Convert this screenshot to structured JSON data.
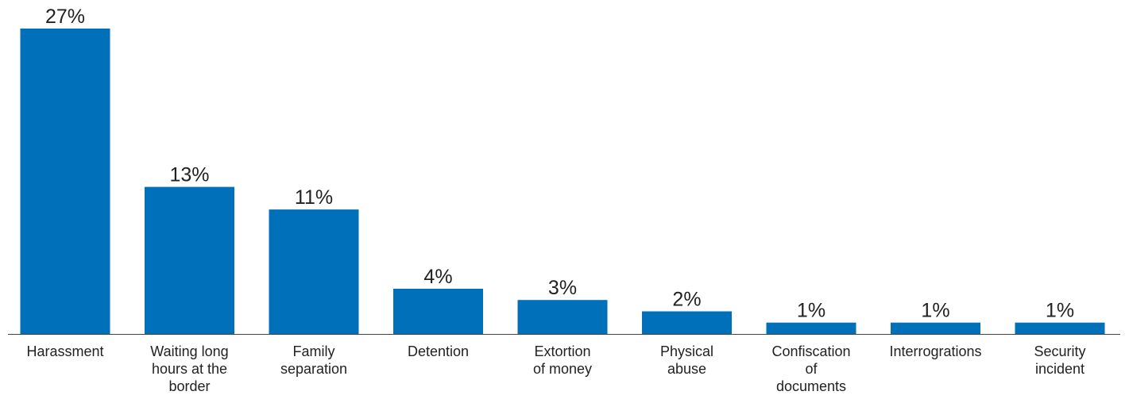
{
  "chart_data": {
    "type": "bar",
    "categories": [
      "Harassment",
      "Waiting long hours at the border",
      "Family separation",
      "Detention",
      "Extortion of money",
      "Physical abuse",
      "Confiscation of documents",
      "Interrogrations",
      "Security incident"
    ],
    "category_lines": [
      [
        "Harassment"
      ],
      [
        "Waiting long",
        "hours at the",
        "border"
      ],
      [
        "Family",
        "separation"
      ],
      [
        "Detention"
      ],
      [
        "Extortion",
        "of money"
      ],
      [
        "Physical",
        "abuse"
      ],
      [
        "Confiscation",
        "of",
        "documents"
      ],
      [
        "Interrogrations"
      ],
      [
        "Security",
        "incident"
      ]
    ],
    "values": [
      27,
      13,
      11,
      4,
      3,
      2,
      1,
      1,
      1
    ],
    "value_labels": [
      "27%",
      "13%",
      "11%",
      "4%",
      "3%",
      "2%",
      "1%",
      "1%",
      "1%"
    ],
    "unit": "%",
    "ylim": [
      0,
      27
    ],
    "grid": false,
    "legend": "none",
    "bar_color": "#0070ba",
    "axis_color": "#444444",
    "text_color": "#222222"
  }
}
